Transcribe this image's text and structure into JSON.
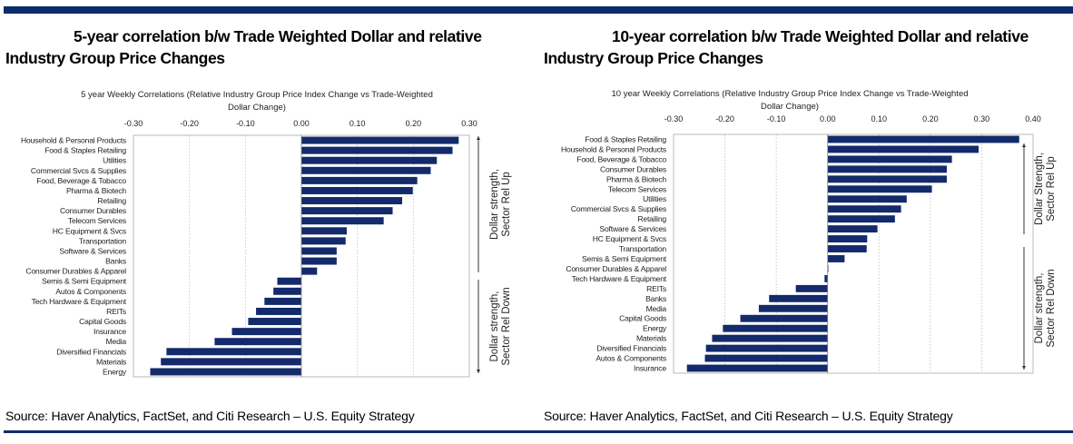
{
  "colors": {
    "bar": "#132a6b",
    "rule": "#0b2c6b",
    "grid": "#bfbfbf"
  },
  "panels": [
    {
      "headline_line1": "5-year correlation b/w Trade Weighted Dollar and relative",
      "headline_line2": "Industry Group Price Changes",
      "source": "Source: Haver Analytics, FactSet, and Citi Research – U.S. Equity Strategy"
    },
    {
      "headline_line1": "10-year correlation b/w Trade Weighted Dollar and relative",
      "headline_line2": "Industry Group Price Changes",
      "source": "Source: Haver Analytics, FactSet, and Citi Research – U.S. Equity Strategy"
    }
  ],
  "chart_data": [
    {
      "type": "bar",
      "orientation": "horizontal",
      "title_line1": "5 year Weekly Correlations (Relative Industry Group Price Index Change vs Trade-Weighted",
      "title_line2": "Dollar Change)",
      "xlim": [
        -0.3,
        0.3
      ],
      "xticks": [
        "-0.30",
        "-0.20",
        "-0.10",
        "0.00",
        "0.10",
        "0.20",
        "0.30"
      ],
      "grid": "vertical dotted",
      "categories": [
        "Household & Personal Products",
        "Food & Staples Retailing",
        "Utilities",
        "Commercial Svcs & Supplies",
        "Food, Beverage & Tobacco",
        "Pharma & Biotech",
        "Retailing",
        "Consumer Durables",
        "Telecom Services",
        "HC Equipment & Svcs",
        "Transportation",
        "Software & Services",
        "Banks",
        "Consumer Durables & Apparel",
        "Semis & Semi Equipment",
        "Autos & Components",
        "Tech Hardware & Equipment",
        "REITs",
        "Capital Goods",
        "Insurance",
        "Media",
        "Diversified Financials",
        "Materials",
        "Energy"
      ],
      "values": [
        0.281,
        0.27,
        0.242,
        0.231,
        0.207,
        0.199,
        0.18,
        0.163,
        0.147,
        0.081,
        0.079,
        0.063,
        0.063,
        0.028,
        -0.043,
        -0.05,
        -0.066,
        -0.081,
        -0.095,
        -0.124,
        -0.155,
        -0.241,
        -0.251,
        -0.27
      ],
      "annotations": [
        {
          "line1": "Dollar strength,",
          "line2": "Sector Rel Up",
          "direction": "up"
        },
        {
          "line1": "Dollar strength,",
          "line2": "Sector Rel Down",
          "direction": "down"
        }
      ]
    },
    {
      "type": "bar",
      "orientation": "horizontal",
      "title_line1": "10 year Weekly Correlations  (Relative Industry Group Price Index Change vs Trade-Weighted",
      "title_line2": "Dollar Change)",
      "xlim": [
        -0.3,
        0.4
      ],
      "xticks": [
        "-0.30",
        "-0.20",
        "-0.10",
        "0.00",
        "0.10",
        "0.20",
        "0.30",
        "0.40"
      ],
      "grid": "vertical dotted",
      "categories": [
        "Food & Staples Retailing",
        "Household & Personal Products",
        "Food, Beverage & Tobacco",
        "Consumer Durables",
        "Pharma & Biotech",
        "Telecom Services",
        "Utilities",
        "Commercial Svcs & Supplies",
        "Retailing",
        "Software & Services",
        "HC Equipment & Svcs",
        "Transportation",
        "Semis & Semi Equipment",
        "Consumer Durables & Apparel",
        "Tech Hardware & Equipment",
        "REITs",
        "Banks",
        "Media",
        "Capital Goods",
        "Energy",
        "Materials",
        "Diversified Financials",
        "Autos & Components",
        "Insurance"
      ],
      "values": [
        0.373,
        0.294,
        0.242,
        0.232,
        0.232,
        0.203,
        0.154,
        0.143,
        0.131,
        0.097,
        0.077,
        0.076,
        0.033,
        0.001,
        -0.006,
        -0.062,
        -0.114,
        -0.134,
        -0.17,
        -0.204,
        -0.225,
        -0.237,
        -0.239,
        -0.274
      ],
      "annotations": [
        {
          "line1": "Dollar Strength,",
          "line2": "Sector Rel Up",
          "direction": "up"
        },
        {
          "line1": "Dollar strength,",
          "line2": "Sector Rel Down",
          "direction": "down"
        }
      ]
    }
  ]
}
